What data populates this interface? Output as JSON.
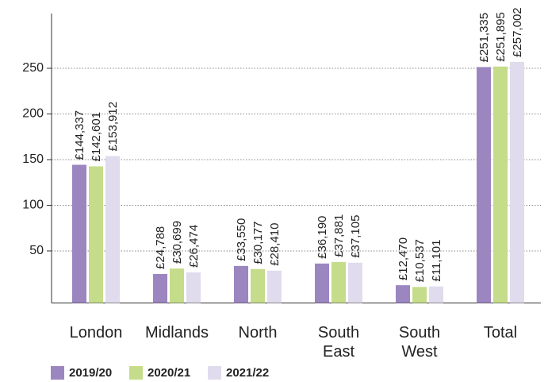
{
  "chart_data": {
    "type": "bar",
    "categories": [
      "London",
      "Midlands",
      "North",
      "South East",
      "South West",
      "Total"
    ],
    "series": [
      {
        "name": "2019/20",
        "color": "#9b86c0",
        "values": [
          144.337,
          24.788,
          33.55,
          36.19,
          12.47,
          251.335
        ],
        "value_labels": [
          "£144,337",
          "£24,788",
          "£33,550",
          "£36,190",
          "£12,470",
          "£251,335"
        ]
      },
      {
        "name": "2020/21",
        "color": "#c5dc8a",
        "values": [
          142.601,
          30.699,
          30.177,
          37.881,
          10.537,
          251.895
        ],
        "value_labels": [
          "£142,601",
          "£30,699",
          "£30,177",
          "£37,881",
          "£10,537",
          "£251,895"
        ]
      },
      {
        "name": "2021/22",
        "color": "#e0dced",
        "values": [
          153.912,
          26.474,
          28.41,
          37.105,
          11.101,
          257.002
        ],
        "value_labels": [
          "£153,912",
          "£26,474",
          "£28,410",
          "£37,105",
          "£11,101",
          "£257,002"
        ]
      }
    ],
    "ylim": [
      -7,
      310
    ],
    "yticks": [
      50,
      100,
      150,
      200,
      250
    ],
    "grid": true
  }
}
